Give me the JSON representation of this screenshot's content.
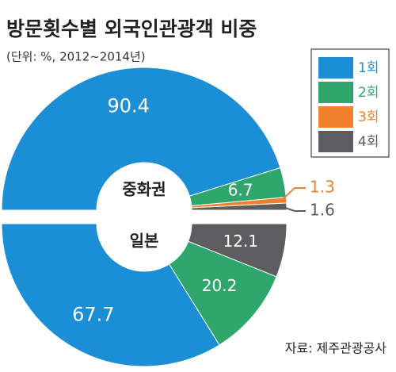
{
  "title": "방문횟수별 외국인관광객 비중",
  "subtitle": "(단위: %, 2012~2014년)",
  "source": "자료: 제주관광공사",
  "legend": {
    "names": [
      "1회",
      "2회",
      "3회",
      "4회"
    ],
    "colors": [
      "#1a8fd6",
      "#2fa66b",
      "#f0802a",
      "#5d5d60"
    ]
  },
  "chart_data": [
    {
      "type": "pie",
      "label": "중화권",
      "values": [
        90.4,
        6.7,
        1.3,
        1.6
      ],
      "colors": [
        "#1a8fd6",
        "#2fa66b",
        "#f0802a",
        "#5d5d60"
      ]
    },
    {
      "type": "pie",
      "label": "일본",
      "values": [
        67.7,
        20.2,
        12.1
      ],
      "colors": [
        "#1a8fd6",
        "#2fa66b",
        "#5d5d60"
      ]
    }
  ]
}
